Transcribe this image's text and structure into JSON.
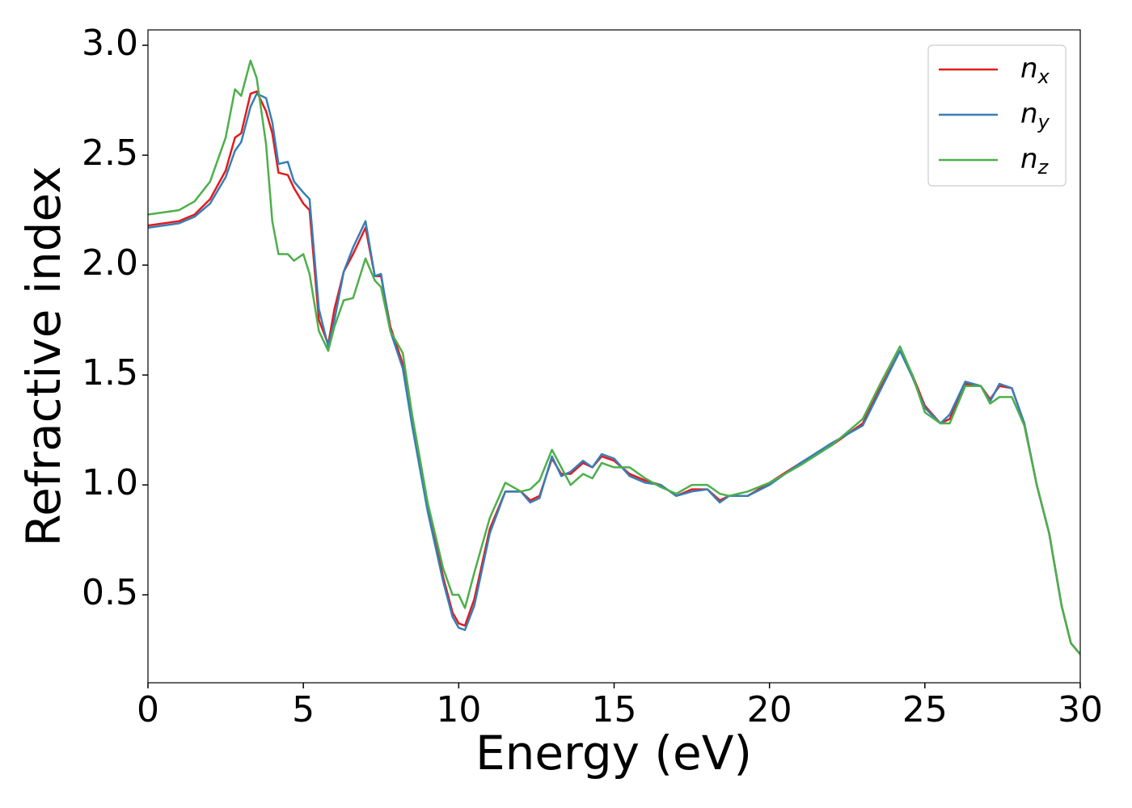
{
  "chart_data": {
    "type": "line",
    "xlabel": "Energy (eV)",
    "ylabel": "Refractive index",
    "xlim": [
      0,
      30
    ],
    "ylim": [
      0.1,
      3.07
    ],
    "xticks": [
      0,
      5,
      10,
      15,
      20,
      25,
      30
    ],
    "yticks": [
      0.5,
      {
        "value": 1.0,
        "label": "1.0"
      },
      1.5,
      {
        "value": 2.0,
        "label": "2.0"
      },
      2.5,
      {
        "value": 3.0,
        "label": "3.0"
      }
    ],
    "legend": "upper right",
    "x": [
      0,
      1,
      1.5,
      2,
      2.5,
      2.8,
      3.0,
      3.3,
      3.5,
      3.8,
      4.0,
      4.2,
      4.5,
      4.7,
      5.0,
      5.2,
      5.5,
      5.8,
      6.0,
      6.3,
      6.6,
      7.0,
      7.3,
      7.5,
      7.8,
      8.2,
      8.5,
      9.0,
      9.5,
      9.8,
      10.0,
      10.2,
      10.5,
      11,
      11.5,
      12,
      12.3,
      12.6,
      13,
      13.3,
      13.6,
      14,
      14.3,
      14.6,
      15,
      15.5,
      16,
      16.5,
      17,
      17.5,
      18,
      18.4,
      18.7,
      19.3,
      20,
      21,
      22,
      23,
      23.6,
      24.2,
      24.6,
      25,
      25.5,
      25.8,
      26.3,
      26.8,
      27.1,
      27.4,
      27.8,
      28.2,
      28.6,
      29,
      29.4,
      29.7,
      30
    ],
    "series": [
      {
        "name": "nx",
        "color": "#e41a1c",
        "values": [
          2.18,
          2.2,
          2.23,
          2.3,
          2.43,
          2.58,
          2.6,
          2.78,
          2.79,
          2.7,
          2.6,
          2.42,
          2.41,
          2.35,
          2.28,
          2.25,
          1.75,
          1.64,
          1.8,
          1.97,
          2.05,
          2.17,
          1.95,
          1.95,
          1.72,
          1.55,
          1.28,
          0.9,
          0.58,
          0.42,
          0.37,
          0.36,
          0.48,
          0.8,
          0.97,
          0.97,
          0.93,
          0.95,
          1.12,
          1.05,
          1.05,
          1.1,
          1.08,
          1.13,
          1.11,
          1.05,
          1.02,
          1.0,
          0.95,
          0.98,
          0.98,
          0.93,
          0.95,
          0.95,
          1.01,
          1.1,
          1.18,
          1.28,
          1.45,
          1.61,
          1.5,
          1.36,
          1.28,
          1.3,
          1.46,
          1.45,
          1.39,
          1.45,
          1.44,
          1.28,
          1.0,
          0.78,
          0.45,
          0.28,
          0.23
        ]
      },
      {
        "name": "ny",
        "color": "#377eb8",
        "values": [
          2.17,
          2.19,
          2.22,
          2.28,
          2.4,
          2.52,
          2.56,
          2.72,
          2.78,
          2.76,
          2.65,
          2.46,
          2.47,
          2.38,
          2.33,
          2.3,
          1.8,
          1.63,
          1.75,
          1.97,
          2.08,
          2.2,
          1.95,
          1.96,
          1.7,
          1.53,
          1.27,
          0.88,
          0.56,
          0.4,
          0.35,
          0.34,
          0.45,
          0.78,
          0.97,
          0.97,
          0.92,
          0.94,
          1.13,
          1.04,
          1.06,
          1.11,
          1.08,
          1.14,
          1.12,
          1.04,
          1.01,
          1.0,
          0.95,
          0.97,
          0.98,
          0.92,
          0.95,
          0.95,
          1.0,
          1.1,
          1.19,
          1.27,
          1.44,
          1.61,
          1.49,
          1.35,
          1.28,
          1.32,
          1.47,
          1.45,
          1.38,
          1.46,
          1.44,
          1.28,
          1.0,
          0.78,
          0.45,
          0.28,
          0.23
        ]
      },
      {
        "name": "nz",
        "color": "#4daf4a",
        "values": [
          2.23,
          2.25,
          2.29,
          2.38,
          2.58,
          2.8,
          2.77,
          2.93,
          2.85,
          2.55,
          2.2,
          2.05,
          2.05,
          2.02,
          2.05,
          1.96,
          1.7,
          1.61,
          1.72,
          1.84,
          1.85,
          2.03,
          1.93,
          1.9,
          1.7,
          1.6,
          1.32,
          0.92,
          0.62,
          0.5,
          0.5,
          0.44,
          0.6,
          0.85,
          1.01,
          0.97,
          0.98,
          1.02,
          1.16,
          1.08,
          1.0,
          1.05,
          1.03,
          1.1,
          1.08,
          1.08,
          1.03,
          0.99,
          0.96,
          1.0,
          1.0,
          0.96,
          0.95,
          0.97,
          1.01,
          1.09,
          1.18,
          1.3,
          1.47,
          1.63,
          1.5,
          1.33,
          1.28,
          1.28,
          1.45,
          1.45,
          1.37,
          1.4,
          1.4,
          1.27,
          1.0,
          0.78,
          0.45,
          0.28,
          0.23
        ]
      }
    ]
  }
}
